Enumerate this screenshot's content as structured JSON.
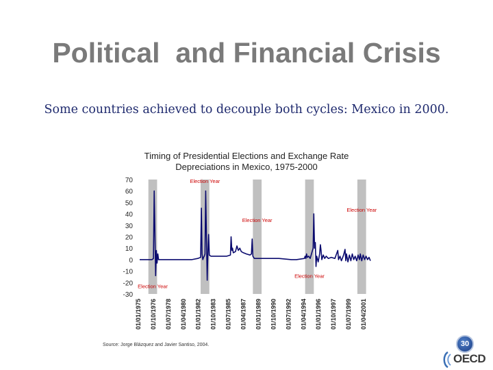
{
  "slide": {
    "title": "Political  and Financial Crisis",
    "subtitle": "Some countries achieved to decouple both cycles: Mexico in 2000.",
    "source": "Source: Jorge Blázquez and Javier Santiso, 2004.",
    "page_number": "30",
    "logo_text": "OECD"
  },
  "chart_data": {
    "type": "line",
    "title": "Timing of Presidential Elections and Exchange Rate Depreciations in Mexico, 1975-2000",
    "title_lines": [
      "Timing of Presidential Elections and Exchange Rate",
      "Depreciations in Mexico, 1975-2000"
    ],
    "xlabel": "",
    "ylabel": "",
    "ylim": [
      -30,
      70
    ],
    "yticks": [
      70,
      60,
      50,
      40,
      30,
      20,
      10,
      0,
      -10,
      -20,
      -30
    ],
    "yticklabels": [
      "70",
      "60",
      "50",
      "40",
      "30",
      "20",
      "10",
      "0",
      "-10",
      "-20",
      "-30"
    ],
    "xlim": [
      "1975-01",
      "2001-07"
    ],
    "xticklabels": [
      "01/01/1975",
      "01/10/1976",
      "01/07/1978",
      "01/04/1980",
      "01/01/1982",
      "01/10/1983",
      "01/07/1985",
      "01/04/1987",
      "01/01/1989",
      "01/10/1990",
      "01/07/1992",
      "01/04/1994",
      "01/01/1996",
      "01/10/1997",
      "01/07/1999",
      "01/04/2001"
    ],
    "series_color": "#0a0a6e",
    "election_band_color": "#c0c0c0",
    "election_years": [
      1976,
      1982,
      1988,
      1994,
      2000
    ],
    "annotations": [
      {
        "text": "Election Year",
        "year": 1982,
        "y": 67
      },
      {
        "text": "Election Year",
        "year": 1988,
        "y": 33
      },
      {
        "text": "Election Year",
        "year": 2000,
        "y": 42
      },
      {
        "text": "Election Year",
        "year": 1994,
        "y": -16
      },
      {
        "text": "Election Year",
        "year": 1976,
        "y": -25
      }
    ],
    "annotation_color": "#cc0000",
    "series": [
      {
        "points": [
          [
            "1975-01",
            0
          ],
          [
            "1976-06",
            0
          ],
          [
            "1976-08",
            1
          ],
          [
            "1976-09",
            60
          ],
          [
            "1976-10",
            22
          ],
          [
            "1976-11",
            -14
          ],
          [
            "1976-12",
            8
          ],
          [
            "1977-01",
            -3
          ],
          [
            "1977-02",
            5
          ],
          [
            "1977-03",
            0
          ],
          [
            "1977-06",
            0
          ],
          [
            "1978-06",
            0
          ],
          [
            "1980-01",
            0
          ],
          [
            "1981-01",
            0
          ],
          [
            "1981-09",
            1
          ],
          [
            "1982-01",
            2
          ],
          [
            "1982-02",
            45
          ],
          [
            "1982-03",
            5
          ],
          [
            "1982-04",
            0
          ],
          [
            "1982-05",
            2
          ],
          [
            "1982-06",
            3
          ],
          [
            "1982-07",
            5
          ],
          [
            "1982-08",
            60
          ],
          [
            "1982-09",
            20
          ],
          [
            "1982-10",
            -18
          ],
          [
            "1982-11",
            5
          ],
          [
            "1982-12",
            22
          ],
          [
            "1983-01",
            4
          ],
          [
            "1983-03",
            3
          ],
          [
            "1984-01",
            3
          ],
          [
            "1985-01",
            3
          ],
          [
            "1985-06",
            4
          ],
          [
            "1985-07",
            20
          ],
          [
            "1985-08",
            8
          ],
          [
            "1985-09",
            10
          ],
          [
            "1985-10",
            6
          ],
          [
            "1986-01",
            7
          ],
          [
            "1986-03",
            12
          ],
          [
            "1986-05",
            8
          ],
          [
            "1986-07",
            10
          ],
          [
            "1986-09",
            7
          ],
          [
            "1986-12",
            6
          ],
          [
            "1987-04",
            5
          ],
          [
            "1987-09",
            4
          ],
          [
            "1987-11",
            5
          ],
          [
            "1987-12",
            18
          ],
          [
            "1988-01",
            3
          ],
          [
            "1988-03",
            1
          ],
          [
            "1989-06",
            1
          ],
          [
            "1991-01",
            1
          ],
          [
            "1992-06",
            0
          ],
          [
            "1993-01",
            0
          ],
          [
            "1993-12",
            1
          ],
          [
            "1994-01",
            3
          ],
          [
            "1994-02",
            1
          ],
          [
            "1994-03",
            5
          ],
          [
            "1994-04",
            2
          ],
          [
            "1994-06",
            3
          ],
          [
            "1994-08",
            1
          ],
          [
            "1994-12",
            10
          ],
          [
            "1995-01",
            40
          ],
          [
            "1995-02",
            10
          ],
          [
            "1995-03",
            15
          ],
          [
            "1995-04",
            -6
          ],
          [
            "1995-05",
            3
          ],
          [
            "1995-07",
            -2
          ],
          [
            "1995-09",
            5
          ],
          [
            "1995-10",
            13
          ],
          [
            "1995-11",
            8
          ],
          [
            "1995-12",
            0
          ],
          [
            "1996-02",
            4
          ],
          [
            "1996-04",
            1
          ],
          [
            "1996-06",
            3
          ],
          [
            "1996-09",
            1
          ],
          [
            "1997-01",
            2
          ],
          [
            "1997-06",
            1
          ],
          [
            "1997-10",
            8
          ],
          [
            "1997-11",
            0
          ],
          [
            "1998-01",
            3
          ],
          [
            "1998-03",
            -1
          ],
          [
            "1998-06",
            4
          ],
          [
            "1998-08",
            9
          ],
          [
            "1998-09",
            -1
          ],
          [
            "1998-10",
            5
          ],
          [
            "1998-12",
            -2
          ],
          [
            "1999-02",
            4
          ],
          [
            "1999-04",
            -1
          ],
          [
            "1999-06",
            5
          ],
          [
            "1999-08",
            0
          ],
          [
            "1999-10",
            3
          ],
          [
            "1999-12",
            -1
          ],
          [
            "2000-02",
            4
          ],
          [
            "2000-04",
            0
          ],
          [
            "2000-05",
            5
          ],
          [
            "2000-07",
            -1
          ],
          [
            "2000-09",
            4
          ],
          [
            "2000-11",
            0
          ],
          [
            "2001-01",
            3
          ],
          [
            "2001-03",
            0
          ],
          [
            "2001-05",
            2
          ],
          [
            "2001-07",
            -1
          ]
        ]
      }
    ]
  }
}
